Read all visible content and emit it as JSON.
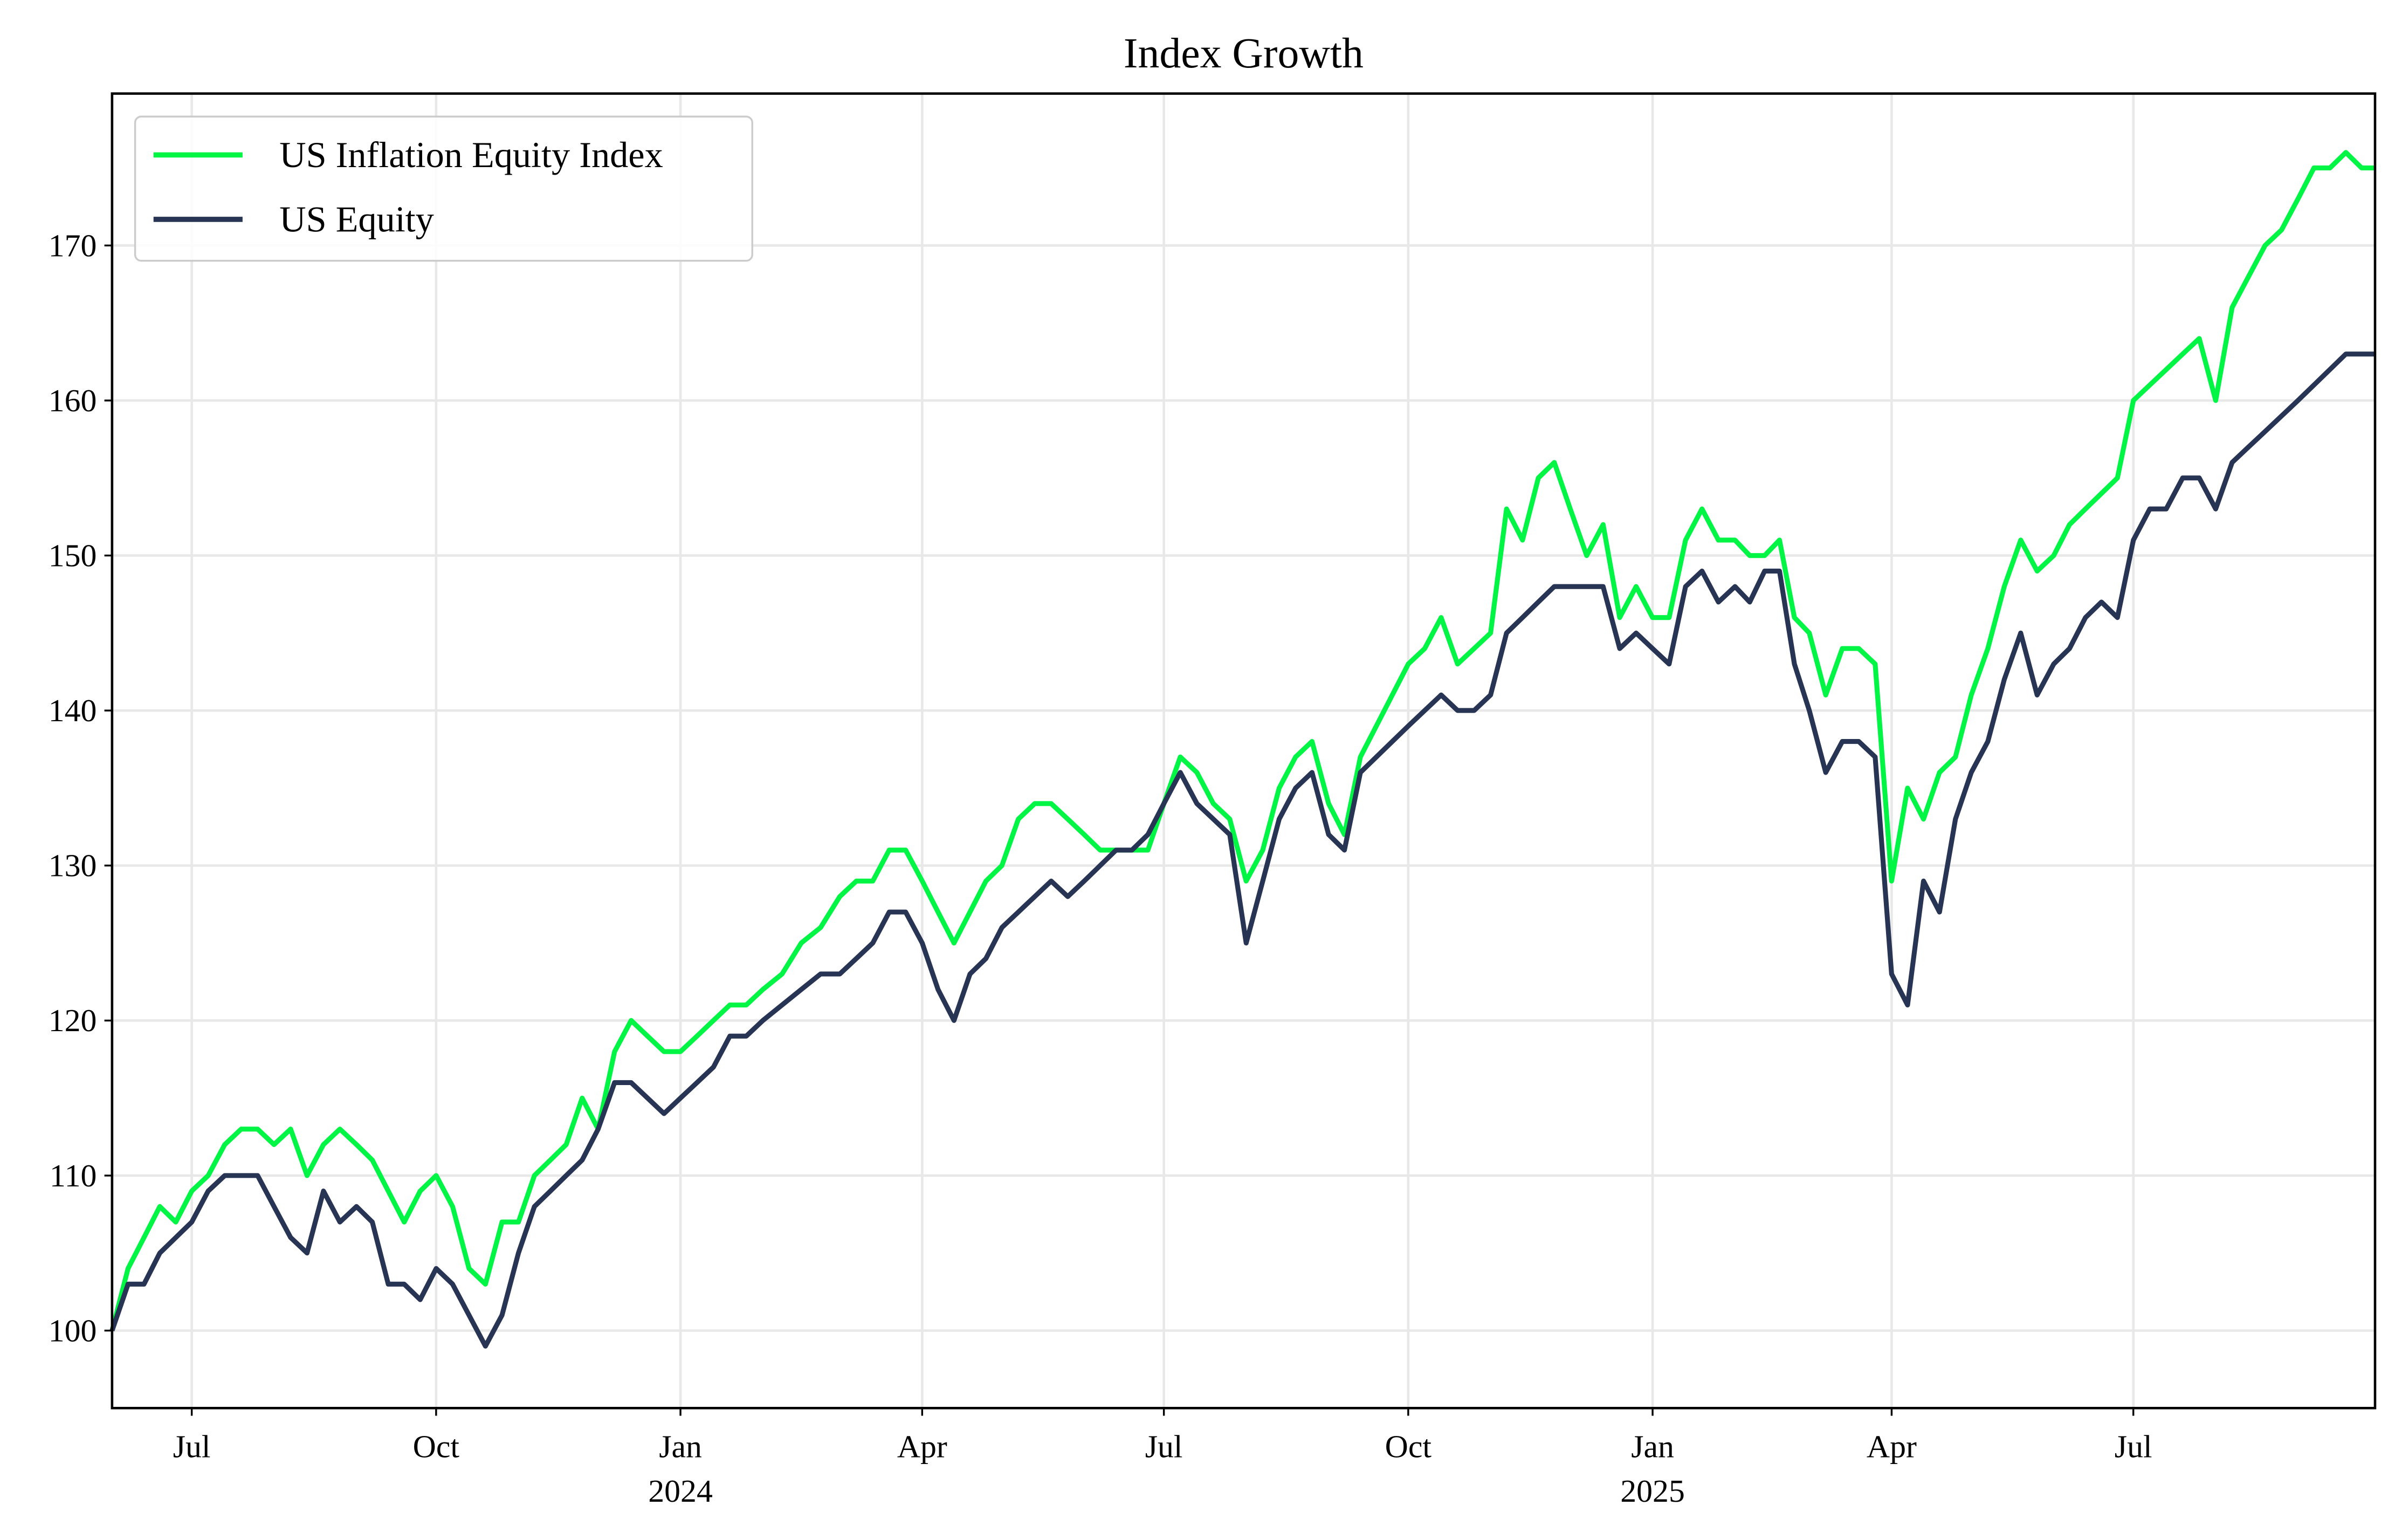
{
  "chart_data": {
    "type": "line",
    "title": "Index Growth",
    "xlabel": "",
    "ylabel": "",
    "ylim": [
      95,
      179.8
    ],
    "xlim": [
      "2023-06-01",
      "2025-09-30"
    ],
    "grid": true,
    "legend_placement": "top-left",
    "y_ticks": [
      100,
      110,
      120,
      130,
      140,
      150,
      160,
      170
    ],
    "x_ticks": [
      {
        "date": "2023-07-01",
        "label": "Jul",
        "sublabel": ""
      },
      {
        "date": "2023-10-01",
        "label": "Oct",
        "sublabel": ""
      },
      {
        "date": "2024-01-01",
        "label": "Jan",
        "sublabel": "2024"
      },
      {
        "date": "2024-04-01",
        "label": "Apr",
        "sublabel": ""
      },
      {
        "date": "2024-07-01",
        "label": "Jul",
        "sublabel": ""
      },
      {
        "date": "2024-10-01",
        "label": "Oct",
        "sublabel": ""
      },
      {
        "date": "2025-01-01",
        "label": "Jan",
        "sublabel": "2025"
      },
      {
        "date": "2025-04-01",
        "label": "Apr",
        "sublabel": ""
      },
      {
        "date": "2025-07-01",
        "label": "Jul",
        "sublabel": ""
      }
    ],
    "series": [
      {
        "name": "US Inflation Equity Index",
        "color": "#00f545"
      },
      {
        "name": "US Equity",
        "color": "#283454"
      }
    ],
    "monthly_values": [
      {
        "month": "2023-06",
        "s0": [
          100,
          104,
          106,
          108,
          107
        ],
        "s1": [
          100,
          103,
          103,
          105,
          106
        ]
      },
      {
        "month": "2023-07",
        "s0": [
          109,
          110,
          112,
          113,
          113
        ],
        "s1": [
          107,
          109,
          110,
          110,
          110
        ]
      },
      {
        "month": "2023-08",
        "s0": [
          112,
          113,
          110,
          112,
          113
        ],
        "s1": [
          108,
          106,
          105,
          109,
          107
        ]
      },
      {
        "month": "2023-09",
        "s0": [
          112,
          111,
          109,
          107,
          109
        ],
        "s1": [
          108,
          107,
          103,
          103,
          102
        ]
      },
      {
        "month": "2023-10",
        "s0": [
          110,
          108,
          104,
          103,
          107
        ],
        "s1": [
          104,
          103,
          101,
          99,
          101
        ]
      },
      {
        "month": "2023-11",
        "s0": [
          107,
          110,
          111,
          112,
          115
        ],
        "s1": [
          105,
          108,
          109,
          110,
          111
        ]
      },
      {
        "month": "2023-12",
        "s0": [
          113,
          118,
          120,
          119,
          118
        ],
        "s1": [
          113,
          116,
          116,
          115,
          114
        ]
      },
      {
        "month": "2024-01",
        "s0": [
          118,
          119,
          120,
          121,
          121
        ],
        "s1": [
          115,
          116,
          117,
          119,
          119
        ]
      },
      {
        "month": "2024-02",
        "s0": [
          122,
          123,
          125,
          126
        ],
        "s1": [
          120,
          121,
          122,
          123
        ]
      },
      {
        "month": "2024-03",
        "s0": [
          128,
          129,
          129,
          131,
          131
        ],
        "s1": [
          123,
          124,
          125,
          127,
          127
        ]
      },
      {
        "month": "2024-04",
        "s0": [
          129,
          127,
          125,
          127,
          129
        ],
        "s1": [
          125,
          122,
          120,
          123,
          124
        ]
      },
      {
        "month": "2024-05",
        "s0": [
          130,
          133,
          134,
          134,
          133
        ],
        "s1": [
          126,
          127,
          128,
          129,
          128
        ]
      },
      {
        "month": "2024-06",
        "s0": [
          132,
          131,
          131,
          131,
          131
        ],
        "s1": [
          129,
          130,
          131,
          131,
          132
        ]
      },
      {
        "month": "2024-07",
        "s0": [
          134,
          137,
          136,
          134,
          133
        ],
        "s1": [
          134,
          136,
          134,
          133,
          132
        ]
      },
      {
        "month": "2024-08",
        "s0": [
          129,
          131,
          135,
          137,
          138
        ],
        "s1": [
          125,
          129,
          133,
          135,
          136
        ]
      },
      {
        "month": "2024-09",
        "s0": [
          134,
          132,
          137,
          139,
          141
        ],
        "s1": [
          132,
          131,
          136,
          137,
          138
        ]
      },
      {
        "month": "2024-10",
        "s0": [
          143,
          144,
          146,
          143,
          144
        ],
        "s1": [
          139,
          140,
          141,
          140,
          140
        ]
      },
      {
        "month": "2024-11",
        "s0": [
          145,
          153,
          151,
          155,
          156
        ],
        "s1": [
          141,
          145,
          146,
          147,
          148
        ]
      },
      {
        "month": "2024-12",
        "s0": [
          153,
          150,
          152,
          146,
          148
        ],
        "s1": [
          148,
          148,
          148,
          144,
          145
        ]
      },
      {
        "month": "2025-01",
        "s0": [
          146,
          146,
          151,
          153,
          151
        ],
        "s1": [
          144,
          143,
          148,
          149,
          147
        ]
      },
      {
        "month": "2025-02",
        "s0": [
          151,
          150,
          150,
          151,
          146
        ],
        "s1": [
          148,
          147,
          149,
          149,
          143
        ]
      },
      {
        "month": "2025-03",
        "s0": [
          145,
          141,
          144,
          144,
          143
        ],
        "s1": [
          140,
          136,
          138,
          138,
          137
        ]
      },
      {
        "month": "2025-04",
        "s0": [
          129,
          135,
          133,
          136,
          137
        ],
        "s1": [
          123,
          121,
          129,
          127,
          133
        ]
      },
      {
        "month": "2025-05",
        "s0": [
          141,
          144,
          148,
          151,
          149
        ],
        "s1": [
          136,
          138,
          142,
          145,
          141
        ]
      },
      {
        "month": "2025-06",
        "s0": [
          150,
          152,
          153,
          154,
          155
        ],
        "s1": [
          143,
          144,
          146,
          147,
          146
        ]
      },
      {
        "month": "2025-07",
        "s0": [
          160,
          161,
          162,
          163,
          164
        ],
        "s1": [
          151,
          153,
          153,
          155,
          155
        ]
      },
      {
        "month": "2025-08",
        "s0": [
          160,
          166,
          168,
          170,
          171
        ],
        "s1": [
          153,
          156,
          157,
          158,
          159
        ]
      },
      {
        "month": "2025-09",
        "s0": [
          173,
          175,
          175,
          176,
          175
        ],
        "s1": [
          160,
          161,
          162,
          163,
          163
        ]
      }
    ]
  }
}
